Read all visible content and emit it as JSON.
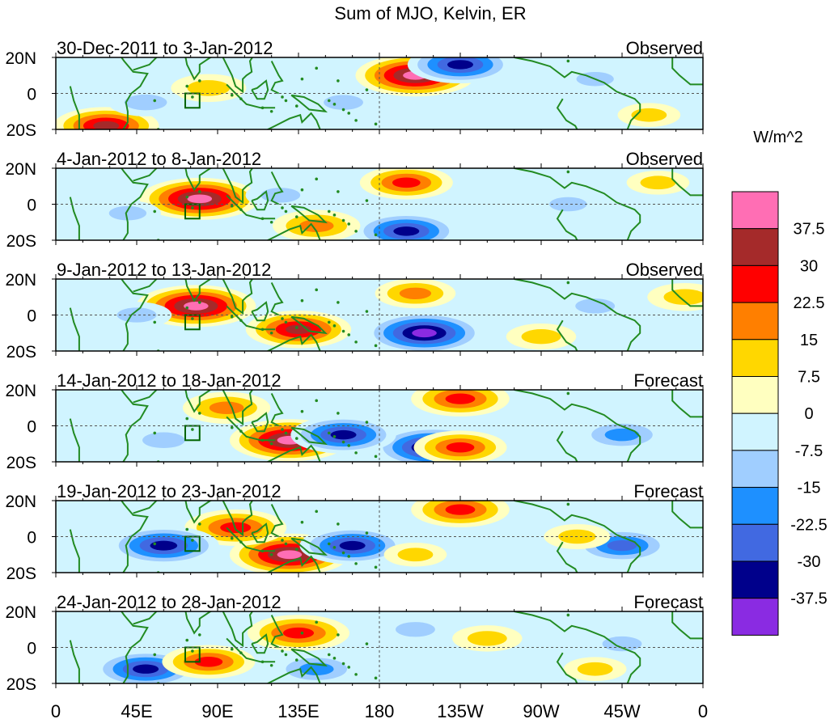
{
  "chart_data": {
    "type": "heatmap",
    "title": "Sum of MJO, Kelvin, ER",
    "units_label": "W/m^2",
    "x_ticks": [
      "0",
      "45E",
      "90E",
      "135E",
      "180",
      "135W",
      "90W",
      "45W",
      "0"
    ],
    "x_tick_values": [
      0,
      45,
      90,
      135,
      180,
      225,
      270,
      315,
      360
    ],
    "y_ticks": [
      "20N",
      "0",
      "20S"
    ],
    "y_tick_values": [
      20,
      0,
      -20
    ],
    "xlim": [
      0,
      360
    ],
    "ylim": [
      -20,
      20
    ],
    "colorbar": {
      "labels": [
        "37.5",
        "30",
        "22.5",
        "15",
        "7.5",
        "0",
        "-7.5",
        "-15",
        "-22.5",
        "-30",
        "-37.5"
      ],
      "colors": [
        "#ff6eb4",
        "#a52a2a",
        "#ff0000",
        "#ff7f00",
        "#ffd700",
        "#ffffc0",
        "#d0f4ff",
        "#a0ceff",
        "#1e90ff",
        "#4169e1",
        "#00008b",
        "#8a2be2"
      ]
    },
    "panels": [
      {
        "period": "30-Dec-2011 to 3-Jan-2012",
        "status": "Observed",
        "features": [
          {
            "lon": 200,
            "lat": 10,
            "value": 40
          },
          {
            "lon": 225,
            "lat": 16,
            "value": -32
          },
          {
            "lon": 85,
            "lat": 3,
            "value": 15
          },
          {
            "lon": 28,
            "lat": -18,
            "value": 32
          },
          {
            "lon": 50,
            "lat": -5,
            "value": -15
          },
          {
            "lon": 160,
            "lat": -5,
            "value": -12
          },
          {
            "lon": 300,
            "lat": 8,
            "value": -10
          },
          {
            "lon": 330,
            "lat": -12,
            "value": 8
          }
        ]
      },
      {
        "period": "4-Jan-2012 to 8-Jan-2012",
        "status": "Observed",
        "features": [
          {
            "lon": 80,
            "lat": 3,
            "value": 40
          },
          {
            "lon": 195,
            "lat": 12,
            "value": 25
          },
          {
            "lon": 195,
            "lat": -15,
            "value": -32
          },
          {
            "lon": 145,
            "lat": -12,
            "value": 22
          },
          {
            "lon": 125,
            "lat": 5,
            "value": -12
          },
          {
            "lon": 40,
            "lat": -5,
            "value": -10
          },
          {
            "lon": 285,
            "lat": 0,
            "value": -10
          },
          {
            "lon": 335,
            "lat": 12,
            "value": 8
          }
        ]
      },
      {
        "period": "9-Jan-2012 to 13-Jan-2012",
        "status": "Observed",
        "features": [
          {
            "lon": 78,
            "lat": 5,
            "value": 40
          },
          {
            "lon": 135,
            "lat": -8,
            "value": 32
          },
          {
            "lon": 205,
            "lat": -10,
            "value": -40
          },
          {
            "lon": 200,
            "lat": 12,
            "value": 18
          },
          {
            "lon": 350,
            "lat": 10,
            "value": 15
          },
          {
            "lon": 45,
            "lat": 0,
            "value": -12
          },
          {
            "lon": 270,
            "lat": -12,
            "value": 12
          },
          {
            "lon": 300,
            "lat": 5,
            "value": -12
          }
        ]
      },
      {
        "period": "14-Jan-2012 to 18-Jan-2012",
        "status": "Forecast",
        "features": [
          {
            "lon": 130,
            "lat": -8,
            "value": 40
          },
          {
            "lon": 210,
            "lat": -12,
            "value": -40
          },
          {
            "lon": 160,
            "lat": -5,
            "value": -32
          },
          {
            "lon": 95,
            "lat": 10,
            "value": 22
          },
          {
            "lon": 225,
            "lat": 15,
            "value": 28
          },
          {
            "lon": 225,
            "lat": -12,
            "value": 25
          },
          {
            "lon": 315,
            "lat": -5,
            "value": -22
          },
          {
            "lon": 60,
            "lat": -8,
            "value": -15
          }
        ]
      },
      {
        "period": "19-Jan-2012 to 23-Jan-2012",
        "status": "Forecast",
        "features": [
          {
            "lon": 130,
            "lat": -10,
            "value": 40
          },
          {
            "lon": 100,
            "lat": 5,
            "value": 30
          },
          {
            "lon": 60,
            "lat": -5,
            "value": -35
          },
          {
            "lon": 165,
            "lat": -5,
            "value": -32
          },
          {
            "lon": 225,
            "lat": 15,
            "value": 28
          },
          {
            "lon": 315,
            "lat": -5,
            "value": -28
          },
          {
            "lon": 290,
            "lat": 0,
            "value": 10
          },
          {
            "lon": 200,
            "lat": -10,
            "value": 8
          }
        ]
      },
      {
        "period": "24-Jan-2012 to 28-Jan-2012",
        "status": "Forecast",
        "features": [
          {
            "lon": 135,
            "lat": 8,
            "value": 30
          },
          {
            "lon": 50,
            "lat": -12,
            "value": -32
          },
          {
            "lon": 85,
            "lat": -8,
            "value": 25
          },
          {
            "lon": 145,
            "lat": -12,
            "value": -22
          },
          {
            "lon": 240,
            "lat": 5,
            "value": 12
          },
          {
            "lon": 200,
            "lat": 10,
            "value": -12
          },
          {
            "lon": 315,
            "lat": 2,
            "value": -12
          },
          {
            "lon": 300,
            "lat": -12,
            "value": 8
          }
        ]
      }
    ]
  }
}
